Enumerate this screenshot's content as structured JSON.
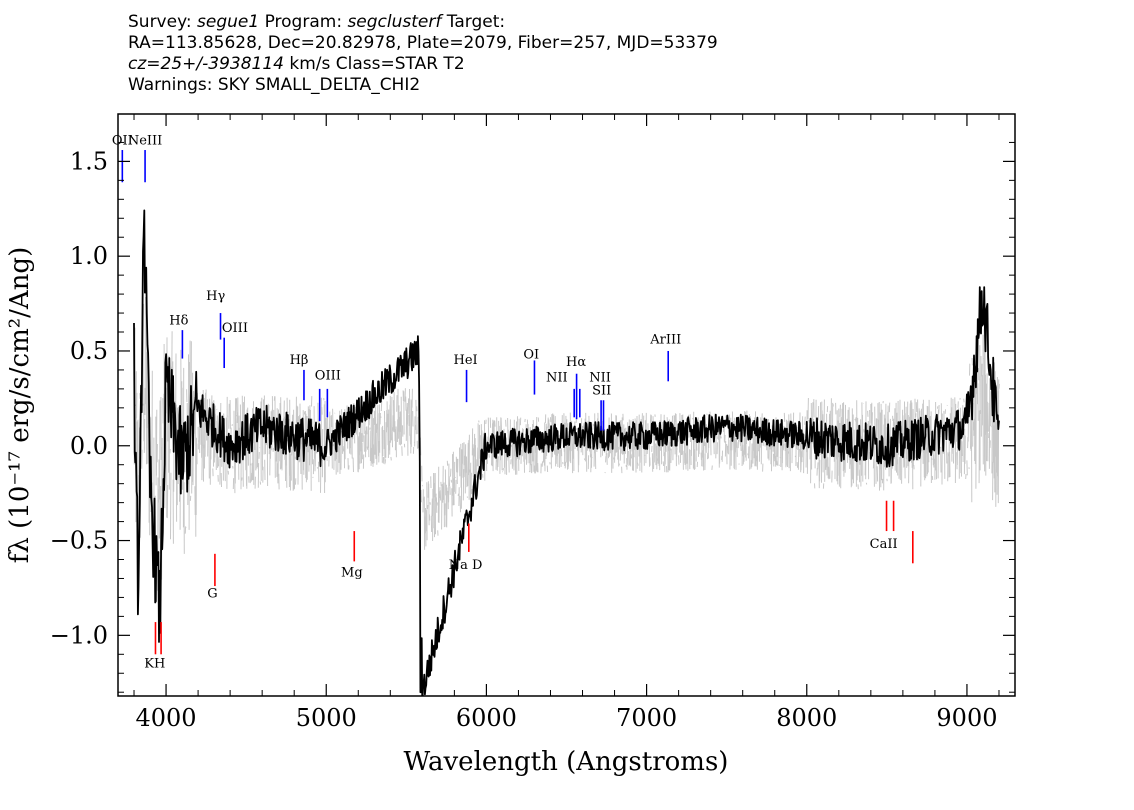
{
  "header": {
    "line1_prefix": "Survey: ",
    "survey": "segue1",
    "line1_mid": " Program: ",
    "program": "segclusterf",
    "line1_suffix": " Target:",
    "line2": "RA=113.85628, Dec=20.82978, Plate=2079, Fiber=257, MJD=53379",
    "line3_italic": "cz=25+/-3938114",
    "line3_rest": " km/s Class=STAR T2",
    "line4": "Warnings: SKY SMALL_DELTA_CHI2"
  },
  "chart_data": {
    "type": "line",
    "xlabel": "Wavelength (Angstroms)",
    "ylabel": "fλ (10⁻¹⁷ erg/s/cm²/Ang)",
    "xlim": [
      3700,
      9300
    ],
    "ylim": [
      -1.32,
      1.75
    ],
    "x_ticks": [
      4000,
      5000,
      6000,
      7000,
      8000,
      9000
    ],
    "y_ticks": [
      -1.0,
      -0.5,
      0.0,
      0.5,
      1.0,
      1.5
    ],
    "y_tick_labels": [
      "−1.0",
      "−0.5",
      "0.0",
      "0.5",
      "1.0",
      "1.5"
    ],
    "colors": {
      "flux": "#000000",
      "error": "#c8c8c8",
      "emission": "#0000ff",
      "absorption": "#ff0000"
    },
    "series": [
      {
        "name": "flux",
        "x_range": [
          3800,
          9200
        ],
        "points_coarse": [
          [
            3800,
            0.4
          ],
          [
            3830,
            -0.9
          ],
          [
            3860,
            1.3
          ],
          [
            3900,
            -0.2
          ],
          [
            3960,
            -0.9
          ],
          [
            4000,
            0.3
          ],
          [
            4100,
            -0.1
          ],
          [
            4200,
            0.2
          ],
          [
            4400,
            0.0
          ],
          [
            4600,
            0.1
          ],
          [
            5000,
            0.0
          ],
          [
            5577,
            0.5
          ],
          [
            5600,
            -1.3
          ],
          [
            6000,
            0.0
          ],
          [
            6500,
            0.05
          ],
          [
            7000,
            0.05
          ],
          [
            7500,
            0.1
          ],
          [
            8000,
            0.05
          ],
          [
            8500,
            0.0
          ],
          [
            9000,
            0.1
          ],
          [
            9100,
            0.8
          ],
          [
            9200,
            0.0
          ]
        ]
      },
      {
        "name": "error",
        "x_range": [
          3800,
          9200
        ]
      }
    ],
    "emission_lines": [
      {
        "label": "OII",
        "x": 3727,
        "y_top": 1.56,
        "y_bottom": 1.39
      },
      {
        "label": "NeIII",
        "x": 3869,
        "y_top": 1.56,
        "y_bottom": 1.39
      },
      {
        "label": "Hδ",
        "x": 4102,
        "y_top": 0.61,
        "y_bottom": 0.46
      },
      {
        "label": "Hγ",
        "x": 4340,
        "y_top": 0.7,
        "y_bottom": 0.56
      },
      {
        "label": "OIII",
        "x": 4363,
        "y_top": 0.57,
        "y_bottom": 0.41
      },
      {
        "label": "Hβ",
        "x": 4861,
        "y_top": 0.4,
        "y_bottom": 0.24
      },
      {
        "label": "OIII",
        "x": 4959,
        "y_top": 0.3,
        "y_bottom": 0.13
      },
      {
        "label": "OIII",
        "x": 5007,
        "y_top": 0.3,
        "y_bottom": 0.15
      },
      {
        "label": "HeI",
        "x": 5876,
        "y_top": 0.4,
        "y_bottom": 0.23
      },
      {
        "label": "OI",
        "x": 6300,
        "y_top": 0.45,
        "y_bottom": 0.27
      },
      {
        "label": "NII",
        "x": 6548,
        "y_top": 0.3,
        "y_bottom": 0.15
      },
      {
        "label": "Hα",
        "x": 6563,
        "y_top": 0.38,
        "y_bottom": 0.14
      },
      {
        "label": "NII",
        "x": 6583,
        "y_top": 0.3,
        "y_bottom": 0.15
      },
      {
        "label": "SII",
        "x": 6716,
        "y_top": 0.24,
        "y_bottom": 0.08
      },
      {
        "label": "SII",
        "x": 6731,
        "y_top": 0.24,
        "y_bottom": 0.08
      },
      {
        "label": "ArIII",
        "x": 7135,
        "y_top": 0.5,
        "y_bottom": 0.34
      }
    ],
    "absorption_lines": [
      {
        "label": "K",
        "x": 3934,
        "y_top": -0.93,
        "y_bottom": -1.1
      },
      {
        "label": "H",
        "x": 3969,
        "y_top": -0.93,
        "y_bottom": -1.1
      },
      {
        "label": "G",
        "x": 4305,
        "y_top": -0.57,
        "y_bottom": -0.74
      },
      {
        "label": "Mg",
        "x": 5175,
        "y_top": -0.45,
        "y_bottom": -0.61
      },
      {
        "label": "Na D",
        "x": 5890,
        "y_top": -0.41,
        "y_bottom": -0.56
      },
      {
        "label": "CaII",
        "x": 8498,
        "y_top": -0.29,
        "y_bottom": -0.45
      },
      {
        "label": "CaII",
        "x": 8542,
        "y_top": -0.29,
        "y_bottom": -0.45
      },
      {
        "label": "CaII",
        "x": 8662,
        "y_top": -0.45,
        "y_bottom": -0.62
      }
    ],
    "line_labels": [
      {
        "text": "OII",
        "x": 3727,
        "y": 1.59
      },
      {
        "text": "NeIII",
        "x": 3869,
        "y": 1.59
      },
      {
        "text": "Hδ",
        "x": 4080,
        "y": 0.64
      },
      {
        "text": "Hγ",
        "x": 4310,
        "y": 0.77
      },
      {
        "text": "OIII",
        "x": 4430,
        "y": 0.6
      },
      {
        "text": "Hβ",
        "x": 4830,
        "y": 0.43
      },
      {
        "text": "OIII",
        "x": 5010,
        "y": 0.35
      },
      {
        "text": "HeI",
        "x": 5870,
        "y": 0.43
      },
      {
        "text": "OI",
        "x": 6280,
        "y": 0.46
      },
      {
        "text": "NII",
        "x": 6440,
        "y": 0.34
      },
      {
        "text": "Hα",
        "x": 6560,
        "y": 0.42
      },
      {
        "text": "NII",
        "x": 6710,
        "y": 0.34
      },
      {
        "text": "SII",
        "x": 6720,
        "y": 0.27
      },
      {
        "text": "ArIII",
        "x": 7120,
        "y": 0.54
      },
      {
        "text": "KH",
        "x": 3930,
        "y": -1.17
      },
      {
        "text": "G",
        "x": 4290,
        "y": -0.8
      },
      {
        "text": "Mg",
        "x": 5160,
        "y": -0.69
      },
      {
        "text": "Na  D",
        "x": 5870,
        "y": -0.65
      },
      {
        "text": "CaII",
        "x": 8480,
        "y": -0.54
      }
    ]
  }
}
